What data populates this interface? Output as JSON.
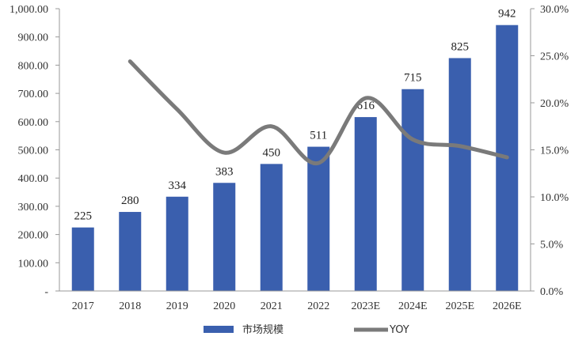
{
  "chart_data": {
    "type": "bar",
    "categories": [
      "2017",
      "2018",
      "2019",
      "2020",
      "2021",
      "2022",
      "2023E",
      "2024E",
      "2025E",
      "2026E"
    ],
    "series": [
      {
        "name": "市场规模",
        "kind": "bar",
        "axis": "left",
        "color": "#3a5fae",
        "values": [
          225,
          280,
          334,
          383,
          450,
          511,
          616,
          715,
          825,
          942
        ],
        "data_labels": [
          "225",
          "280",
          "334",
          "383",
          "450",
          "511",
          "616",
          "715",
          "825",
          "942"
        ]
      },
      {
        "name": "YOY",
        "kind": "line",
        "axis": "right",
        "color": "#7a7a7a",
        "values": [
          null,
          24.4,
          19.3,
          14.7,
          17.5,
          13.6,
          20.5,
          16.1,
          15.4,
          14.2
        ]
      }
    ],
    "y_left": {
      "lim": [
        0,
        1000
      ],
      "ticks": [
        0,
        100,
        200,
        300,
        400,
        500,
        600,
        700,
        800,
        900,
        1000
      ],
      "tick_labels": [
        "-",
        "100.00",
        "200.00",
        "300.00",
        "400.00",
        "500.00",
        "600.00",
        "700.00",
        "800.00",
        "900.00",
        "1,000.00"
      ]
    },
    "y_right": {
      "lim": [
        0,
        30
      ],
      "ticks": [
        0,
        5,
        10,
        15,
        20,
        25,
        30
      ],
      "tick_labels": [
        "0.0%",
        "5.0%",
        "10.0%",
        "15.0%",
        "20.0%",
        "25.0%",
        "30.0%"
      ]
    },
    "grid": false,
    "legend": {
      "position": "bottom-center",
      "entries": [
        "市场规模",
        "YOY"
      ]
    }
  }
}
